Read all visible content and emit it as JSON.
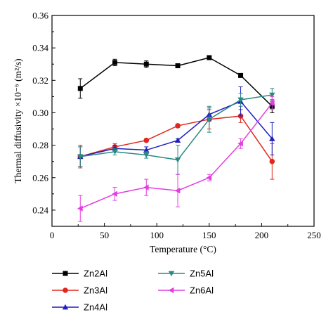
{
  "chart_data": {
    "type": "line",
    "xlabel": "Temperature (°C)",
    "ylabel": "Thermal diffusivity ×10⁻⁶ (m²/s)",
    "xlim": [
      0,
      250
    ],
    "ylim": [
      0.23,
      0.36
    ],
    "x_ticks": [
      0,
      50,
      100,
      150,
      200,
      250
    ],
    "y_ticks": [
      0.24,
      0.26,
      0.28,
      0.3,
      0.32,
      0.34,
      0.36
    ],
    "x_tick_labels": [
      "0",
      "50",
      "100",
      "150",
      "200",
      "250"
    ],
    "y_tick_labels": [
      "0.24",
      "0.26",
      "0.28",
      "0.30",
      "0.32",
      "0.34",
      "0.36"
    ],
    "grid": false,
    "legend_position": "bottom",
    "series": [
      {
        "name": "Zn2Al",
        "color": "#000000",
        "marker": "square",
        "x": [
          27,
          60,
          90,
          120,
          150,
          180,
          210
        ],
        "y": [
          0.315,
          0.331,
          0.33,
          0.329,
          0.334,
          0.323,
          0.304
        ],
        "err": [
          0.006,
          0.002,
          0.002,
          0.001,
          0.001,
          0.001,
          0.004
        ]
      },
      {
        "name": "Zn3Al",
        "color": "#e0261d",
        "marker": "circle",
        "x": [
          27,
          60,
          90,
          120,
          150,
          180,
          210
        ],
        "y": [
          0.273,
          0.279,
          0.283,
          0.292,
          0.296,
          0.298,
          0.27
        ],
        "err": [
          0.007,
          0.002,
          0.001,
          0.001,
          0.006,
          0.004,
          0.011
        ]
      },
      {
        "name": "Zn4Al",
        "color": "#1f1fbf",
        "marker": "triangle-up",
        "x": [
          27,
          60,
          90,
          120,
          150,
          180,
          210
        ],
        "y": [
          0.273,
          0.278,
          0.277,
          0.283,
          0.299,
          0.307,
          0.284
        ],
        "err": [
          0.006,
          0.002,
          0.002,
          0.001,
          0.004,
          0.009,
          0.01
        ]
      },
      {
        "name": "Zn5Al",
        "color": "#2a8a82",
        "marker": "triangle-down",
        "x": [
          27,
          60,
          90,
          120,
          150,
          180,
          210
        ],
        "y": [
          0.273,
          0.276,
          0.274,
          0.271,
          0.296,
          0.308,
          0.311
        ],
        "err": [
          0.006,
          0.002,
          0.002,
          0.009,
          0.008,
          0.004,
          0.004
        ]
      },
      {
        "name": "Zn6Al",
        "color": "#e23ee0",
        "marker": "triangle-left",
        "x": [
          27,
          60,
          90,
          120,
          150,
          180,
          210
        ],
        "y": [
          0.241,
          0.25,
          0.254,
          0.252,
          0.26,
          0.281,
          0.306
        ],
        "err": [
          0.008,
          0.004,
          0.005,
          0.01,
          0.002,
          0.003,
          0.004
        ]
      }
    ]
  }
}
